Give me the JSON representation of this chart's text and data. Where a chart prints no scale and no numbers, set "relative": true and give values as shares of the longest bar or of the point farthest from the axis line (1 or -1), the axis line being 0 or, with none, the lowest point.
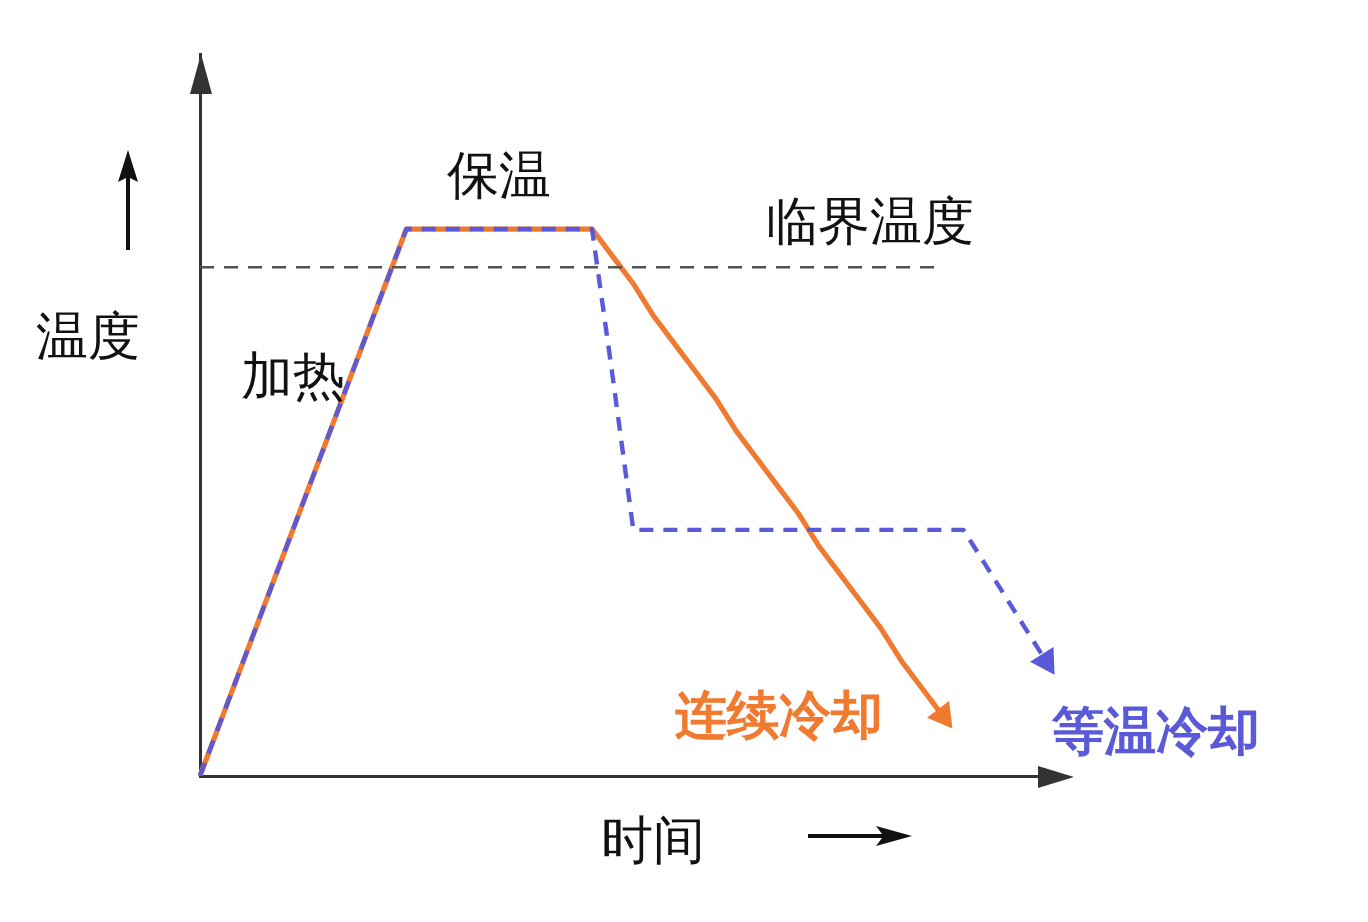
{
  "chart_data": {
    "type": "line",
    "relative": true,
    "xlabel": "时间",
    "ylabel": "温度",
    "tick_labels": false,
    "grid": false,
    "legend": false,
    "marker": "none",
    "categories": [
      null,
      null,
      null,
      null,
      null,
      null,
      null,
      null,
      null,
      null,
      null,
      null,
      null,
      null,
      null,
      null,
      null,
      null,
      null,
      null,
      null,
      null,
      null,
      null,
      null,
      null,
      null,
      null,
      null,
      null,
      null,
      null,
      null,
      null,
      null,
      null,
      null,
      null,
      null,
      null,
      null,
      null
    ],
    "series": [
      {
        "name": "连续冷却",
        "color": "#f07a30",
        "line_style": "solid",
        "values": [
          0,
          0.1,
          0.2,
          0.3,
          0.4,
          0.5,
          0.6,
          0.7,
          0.8,
          0.9,
          1,
          1,
          1,
          1,
          1,
          1,
          1,
          1,
          1,
          1,
          0.95,
          0.9,
          0.84,
          0.79,
          0.74,
          0.69,
          0.63,
          0.58,
          0.53,
          0.48,
          0.42,
          0.37,
          0.32,
          0.27,
          0.21,
          0.16,
          0.11,
          null,
          null,
          null,
          null,
          null
        ]
      },
      {
        "name": "等温冷却",
        "color": "#5a5ad8",
        "line_style": "dashed",
        "values": [
          0,
          0.1,
          0.2,
          0.3,
          0.4,
          0.5,
          0.6,
          0.7,
          0.8,
          0.9,
          1,
          1,
          1,
          1,
          1,
          1,
          1,
          1,
          1,
          1,
          0.73,
          0.45,
          0.45,
          0.45,
          0.45,
          0.45,
          0.45,
          0.45,
          0.45,
          0.45,
          0.45,
          0.45,
          0.45,
          0.45,
          0.45,
          0.45,
          0.45,
          0.45,
          0.39,
          0.33,
          0.27,
          0.21
        ]
      }
    ],
    "ref_lines": [
      {
        "axis": "y",
        "value": 0.93,
        "label": "临界温度",
        "color": "#555555",
        "line_style": "dashed"
      }
    ],
    "annotations": [
      {
        "text": "保温",
        "y": 1
      },
      "加热"
    ]
  }
}
